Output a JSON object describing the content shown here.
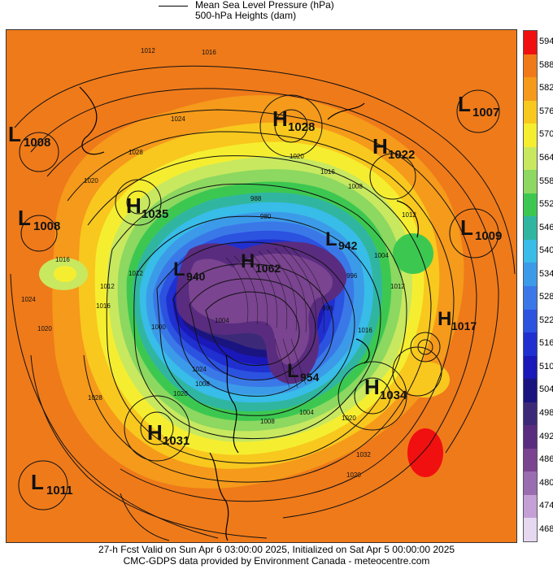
{
  "legend": {
    "mslp_label": "Mean Sea Level Pressure (hPa)",
    "heights_label": "500-hPa Heights (dam)"
  },
  "colorbar": {
    "levels": [
      "594",
      "588",
      "582",
      "576",
      "570",
      "564",
      "558",
      "552",
      "546",
      "540",
      "534",
      "528",
      "522",
      "516",
      "510",
      "504",
      "498",
      "492",
      "486",
      "480",
      "474",
      "468"
    ],
    "colors": [
      "#f01010",
      "#f07a1a",
      "#f59a1a",
      "#f8c81e",
      "#f5ee30",
      "#c8e860",
      "#8cd860",
      "#3cc850",
      "#30b6a0",
      "#38bce8",
      "#3c9be8",
      "#3a78e8",
      "#2c52e0",
      "#2030d0",
      "#1a18b8",
      "#1a1480",
      "#3c2a78",
      "#5a2c80",
      "#7a4490",
      "#9a6cb0",
      "#c4a0d6",
      "#e6d8f0"
    ]
  },
  "systems": [
    {
      "type": "L",
      "value": "1008"
    },
    {
      "type": "L",
      "value": "1008"
    },
    {
      "type": "H",
      "value": "1035"
    },
    {
      "type": "H",
      "value": "1028"
    },
    {
      "type": "H",
      "value": "1022"
    },
    {
      "type": "L",
      "value": "1007"
    },
    {
      "type": "L",
      "value": "1009"
    },
    {
      "type": "L",
      "value": "942"
    },
    {
      "type": "H",
      "value": "1062"
    },
    {
      "type": "L",
      "value": "940"
    },
    {
      "type": "H",
      "value": "1017"
    },
    {
      "type": "L",
      "value": "954"
    },
    {
      "type": "H",
      "value": "1034"
    },
    {
      "type": "H",
      "value": "1031"
    },
    {
      "type": "L",
      "value": "1011"
    }
  ],
  "isobar_labels": [
    "1012",
    "1016",
    "1024",
    "1028",
    "1020",
    "1016",
    "1008",
    "1012",
    "1004",
    "996",
    "1012",
    "1016",
    "1020",
    "1024",
    "1020",
    "1016",
    "1012",
    "1000",
    "988",
    "980",
    "1008",
    "1004",
    "1020",
    "1028",
    "1024",
    "1020",
    "1004",
    "1008",
    "1012",
    "1016",
    "996",
    "1032",
    "1020"
  ],
  "footer": {
    "line1": "27-h Fcst Valid on Sun Apr  6 03:00:00 2025, Initialized on Sat Apr  5 00:00:00 2025",
    "line2": "CMC-GDPS data provided by Environment Canada - meteocentre.com"
  }
}
